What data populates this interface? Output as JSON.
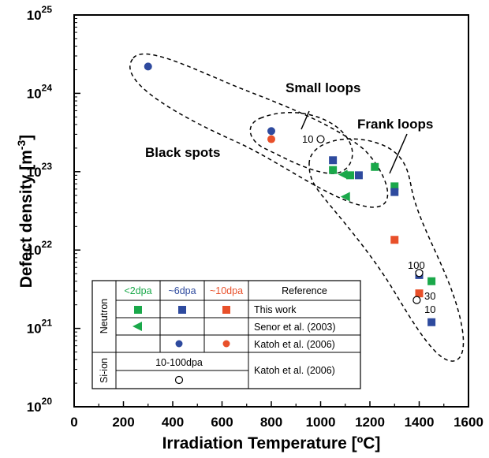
{
  "chart_data": {
    "type": "scatter",
    "xlabel": "Irradiation Temperature [ºC]",
    "ylabel": {
      "base": "Defect density [m",
      "sup": "-3",
      "end": "]"
    },
    "xlim": [
      0,
      1600
    ],
    "ylim_log10": [
      20,
      25
    ],
    "y_scale": "log",
    "x_ticks": [
      "0",
      "200",
      "400",
      "600",
      "800",
      "1000",
      "1200",
      "1400",
      "1600"
    ],
    "y_ticks": [
      {
        "base": "10",
        "exp": "20"
      },
      {
        "base": "10",
        "exp": "21"
      },
      {
        "base": "10",
        "exp": "22"
      },
      {
        "base": "10",
        "exp": "23"
      },
      {
        "base": "10",
        "exp": "24"
      },
      {
        "base": "10",
        "exp": "25"
      }
    ],
    "colors": {
      "green": "#1aa84a",
      "blue": "#2e4a9e",
      "red": "#e8502a"
    },
    "series": [
      {
        "marker": "square",
        "color": "green",
        "points": [
          [
            1050,
            1.05e+23
          ],
          [
            1120,
            9e+22
          ],
          [
            1220,
            1.15e+23
          ],
          [
            1300,
            6.5e+22
          ],
          [
            1450,
            4e+21
          ]
        ]
      },
      {
        "marker": "square",
        "color": "blue",
        "points": [
          [
            1050,
            1.4e+23
          ],
          [
            1155,
            9e+22
          ],
          [
            1300,
            5.5e+22
          ],
          [
            1400,
            4.8e+21
          ],
          [
            1450,
            1.2e+21
          ]
        ]
      },
      {
        "marker": "square",
        "color": "red",
        "points": [
          [
            1300,
            1.35e+22
          ],
          [
            1400,
            2.8e+21
          ]
        ]
      },
      {
        "marker": "triangle-left",
        "color": "green",
        "points": [
          [
            1090,
            9.2e+22
          ],
          [
            1100,
            4.8e+22
          ]
        ]
      },
      {
        "marker": "circle",
        "color": "blue",
        "points": [
          [
            300,
            2.2e+24
          ],
          [
            800,
            3.3e+23
          ]
        ]
      },
      {
        "marker": "circle",
        "color": "red",
        "points": [
          [
            800,
            2.6e+23
          ]
        ]
      },
      {
        "marker": "circle-open",
        "color": "black",
        "points": [
          [
            1000,
            2.6e+23
          ],
          [
            1400,
            5.1e+21
          ],
          [
            1390,
            2.3e+21
          ]
        ]
      }
    ],
    "annotations": {
      "small_loops": "Small loops",
      "frank_loops": "Frank loops",
      "black_spots": "Black spots",
      "pt_10_top": "10",
      "pt_100": "100",
      "pt_30": "30",
      "pt_10_bottom": "10"
    },
    "legend": {
      "col_lt2": "<2dpa",
      "col_6": "~6dpa",
      "col_10": "~10dpa",
      "col_ref": "Reference",
      "group_neutron": "Neutron",
      "group_si": "Si-ion",
      "ref_this": "This work",
      "ref_senor": "Senor et al. (2003)",
      "ref_katoh1": "Katoh et al. (2006)",
      "si_range": "10-100dpa",
      "ref_katoh2": "Katoh et al. (2006)"
    }
  }
}
